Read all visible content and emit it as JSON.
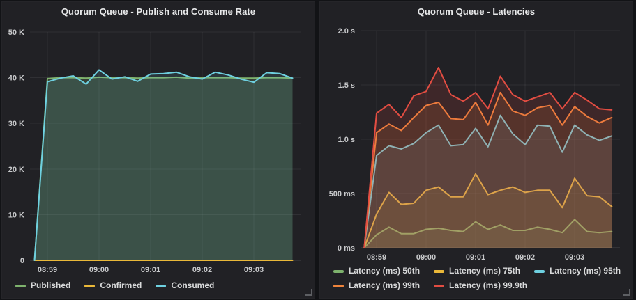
{
  "page": {
    "background": "#121316",
    "panel_background": "#212125",
    "grid_color": "rgba(255,255,255,0.07)",
    "axis_line_color": "rgba(255,255,255,0.16)",
    "tick_text_color": "#c9cacc",
    "title_text_color": "#e8e9ea",
    "legend_text_color": "#d8d9da"
  },
  "panels": [
    {
      "title": "Quorum Queue - Publish and Consume Rate"
    },
    {
      "title": "Quorum Queue - Latencies"
    }
  ],
  "chart_data": [
    {
      "type": "line",
      "title": "Quorum Queue - Publish and Consume Rate",
      "x_start": "08:58:45",
      "x_interval_s": 15,
      "x_axis": {
        "ticks": [
          {
            "label": "08:59",
            "offset_s": 15
          },
          {
            "label": "09:00",
            "offset_s": 75
          },
          {
            "label": "09:01",
            "offset_s": 135
          },
          {
            "label": "09:02",
            "offset_s": 195
          },
          {
            "label": "09:03",
            "offset_s": 255
          }
        ]
      },
      "y_axis": {
        "max": 50000,
        "ticks": [
          {
            "label": "0",
            "value": 0
          },
          {
            "label": "10 K",
            "value": 10000
          },
          {
            "label": "20 K",
            "value": 20000
          },
          {
            "label": "30 K",
            "value": 30000
          },
          {
            "label": "40 K",
            "value": 40000
          },
          {
            "label": "50 K",
            "value": 50000
          }
        ]
      },
      "grid": true,
      "legend_position": "bottom",
      "series": [
        {
          "name": "Published",
          "color": "#7EB26D",
          "values": [
            0,
            39800,
            40000,
            40000,
            39900,
            40100,
            40000,
            40000,
            39900,
            40000,
            40000,
            40100,
            39900,
            40000,
            40000,
            40000,
            39900,
            39900,
            40000,
            40000,
            39900
          ]
        },
        {
          "name": "Confirmed",
          "color": "#EAB839",
          "values": [
            0,
            0,
            0,
            0,
            0,
            0,
            0,
            0,
            0,
            0,
            0,
            0,
            0,
            0,
            0,
            0,
            0,
            0,
            0,
            0,
            0
          ]
        },
        {
          "name": "Consumed",
          "color": "#6ED0E0",
          "values": [
            0,
            39100,
            39900,
            40400,
            38600,
            41700,
            39700,
            40200,
            39200,
            40800,
            40900,
            41200,
            40200,
            39700,
            41200,
            40600,
            39700,
            39000,
            41100,
            40900,
            39900
          ]
        }
      ]
    },
    {
      "type": "line",
      "title": "Quorum Queue - Latencies",
      "x_start": "08:58:45",
      "x_interval_s": 15,
      "x_axis": {
        "ticks": [
          {
            "label": "08:59",
            "offset_s": 15
          },
          {
            "label": "09:00",
            "offset_s": 75
          },
          {
            "label": "09:01",
            "offset_s": 135
          },
          {
            "label": "09:02",
            "offset_s": 195
          },
          {
            "label": "09:03",
            "offset_s": 255
          }
        ]
      },
      "y_axis": {
        "max": 2.0,
        "ticks": [
          {
            "label": "0 ms",
            "value": 0
          },
          {
            "label": "500 ms",
            "value": 0.5
          },
          {
            "label": "1.0 s",
            "value": 1.0
          },
          {
            "label": "1.5 s",
            "value": 1.5
          },
          {
            "label": "2.0 s",
            "value": 2.0
          }
        ]
      },
      "grid": true,
      "legend_position": "bottom",
      "series": [
        {
          "name": "Latency (ms) 50th",
          "color": "#7EB26D",
          "values": [
            0,
            0.12,
            0.19,
            0.13,
            0.13,
            0.17,
            0.18,
            0.16,
            0.15,
            0.24,
            0.17,
            0.21,
            0.16,
            0.16,
            0.19,
            0.17,
            0.14,
            0.26,
            0.15,
            0.14,
            0.15
          ]
        },
        {
          "name": "Latency (ms) 75th",
          "color": "#EAB839",
          "values": [
            0,
            0.31,
            0.51,
            0.4,
            0.41,
            0.53,
            0.56,
            0.47,
            0.47,
            0.68,
            0.49,
            0.53,
            0.56,
            0.51,
            0.53,
            0.53,
            0.37,
            0.64,
            0.48,
            0.47,
            0.38
          ]
        },
        {
          "name": "Latency (ms) 95th",
          "color": "#6ED0E0",
          "values": [
            0,
            0.85,
            0.94,
            0.91,
            0.96,
            1.06,
            1.13,
            0.94,
            0.95,
            1.1,
            0.93,
            1.22,
            1.05,
            0.95,
            1.13,
            1.12,
            0.88,
            1.13,
            1.04,
            0.99,
            1.03
          ]
        },
        {
          "name": "Latency (ms) 99th",
          "color": "#EF843C",
          "values": [
            0,
            1.06,
            1.14,
            1.08,
            1.2,
            1.31,
            1.34,
            1.19,
            1.18,
            1.34,
            1.13,
            1.43,
            1.26,
            1.22,
            1.29,
            1.31,
            1.13,
            1.3,
            1.21,
            1.15,
            1.2
          ]
        },
        {
          "name": "Latency (ms) 99.9th",
          "color": "#E24D42",
          "values": [
            0,
            1.24,
            1.32,
            1.2,
            1.4,
            1.44,
            1.66,
            1.41,
            1.35,
            1.43,
            1.28,
            1.58,
            1.41,
            1.35,
            1.39,
            1.43,
            1.28,
            1.43,
            1.36,
            1.28,
            1.27
          ]
        }
      ]
    }
  ]
}
